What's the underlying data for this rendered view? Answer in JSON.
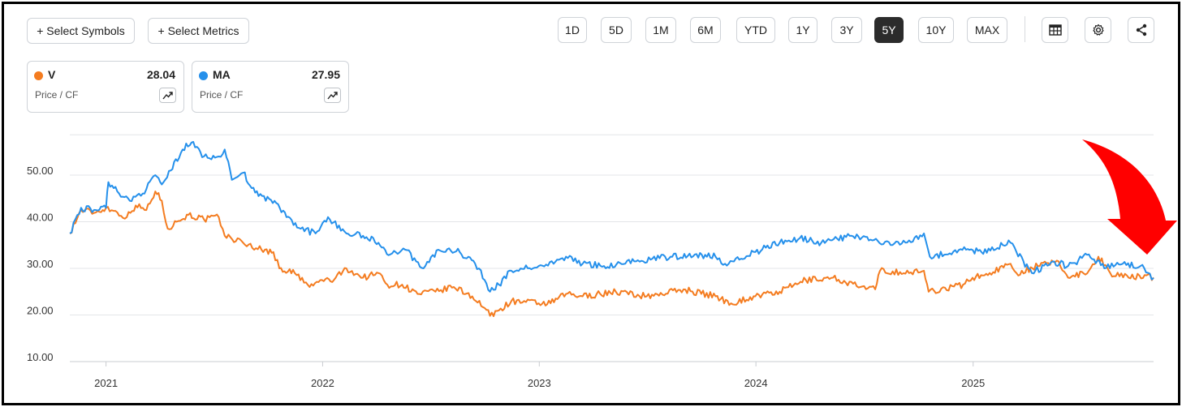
{
  "toolbar": {
    "select_symbols": "+ Select Symbols",
    "select_metrics": "+ Select Metrics",
    "ranges": [
      "1D",
      "5D",
      "1M",
      "6M",
      "YTD",
      "1Y",
      "3Y",
      "5Y",
      "10Y",
      "MAX"
    ],
    "active_range": "5Y",
    "icons": [
      "table-icon",
      "gear-icon",
      "share-icon"
    ]
  },
  "legend_cards": [
    {
      "symbol": "V",
      "value": "28.04",
      "metric": "Price / CF",
      "color": "#f47c20"
    },
    {
      "symbol": "MA",
      "value": "27.95",
      "metric": "Price / CF",
      "color": "#2590eb"
    }
  ],
  "annotation": {
    "type": "red-arrow-pointing-down",
    "color": "#ff0000"
  },
  "chart_data": {
    "type": "line",
    "title": "",
    "xlabel": "",
    "ylabel": "",
    "x_ticks": [
      "2021",
      "2022",
      "2023",
      "2024",
      "2025"
    ],
    "y_ticks": [
      "10.00",
      "20.00",
      "30.00",
      "40.00",
      "50.00"
    ],
    "ylim": [
      9,
      59
    ],
    "xlim": [
      "2020-11-01",
      "2025-11-01"
    ],
    "grid": "horizontal",
    "series": [
      {
        "name": "V",
        "color": "#f47c20",
        "points": [
          [
            "2020-11-01",
            37.5
          ],
          [
            "2020-11-20",
            42.5
          ],
          [
            "2020-12-15",
            42.0
          ],
          [
            "2021-01-01",
            43.0
          ],
          [
            "2021-01-20",
            42.0
          ],
          [
            "2021-02-05",
            41.0
          ],
          [
            "2021-02-20",
            43.5
          ],
          [
            "2021-03-10",
            42.5
          ],
          [
            "2021-03-25",
            46.5
          ],
          [
            "2021-04-05",
            44.5
          ],
          [
            "2021-04-15",
            38.5
          ],
          [
            "2021-04-30",
            40.0
          ],
          [
            "2021-05-20",
            41.5
          ],
          [
            "2021-06-15",
            40.5
          ],
          [
            "2021-07-10",
            41.0
          ],
          [
            "2021-07-20",
            37.0
          ],
          [
            "2021-08-20",
            35.5
          ],
          [
            "2021-09-20",
            34.0
          ],
          [
            "2021-10-10",
            33.5
          ],
          [
            "2021-10-20",
            30.0
          ],
          [
            "2021-11-15",
            29.0
          ],
          [
            "2021-12-10",
            26.0
          ],
          [
            "2021-12-31",
            27.5
          ],
          [
            "2022-01-20",
            27.5
          ],
          [
            "2022-02-10",
            30.0
          ],
          [
            "2022-03-10",
            28.0
          ],
          [
            "2022-04-05",
            29.0
          ],
          [
            "2022-04-20",
            26.5
          ],
          [
            "2022-05-15",
            26.5
          ],
          [
            "2022-06-10",
            24.5
          ],
          [
            "2022-07-10",
            25.0
          ],
          [
            "2022-08-10",
            26.0
          ],
          [
            "2022-09-10",
            24.0
          ],
          [
            "2022-10-01",
            21.5
          ],
          [
            "2022-10-10",
            19.8
          ],
          [
            "2022-10-25",
            21.0
          ],
          [
            "2022-11-15",
            23.0
          ],
          [
            "2022-12-31",
            22.5
          ],
          [
            "2023-01-20",
            22.5
          ],
          [
            "2023-02-15",
            24.5
          ],
          [
            "2023-03-15",
            24.0
          ],
          [
            "2023-05-10",
            25.0
          ],
          [
            "2023-07-01",
            24.0
          ],
          [
            "2023-09-01",
            25.5
          ],
          [
            "2023-10-25",
            24.0
          ],
          [
            "2023-11-20",
            22.5
          ],
          [
            "2023-12-31",
            24.0
          ],
          [
            "2024-02-10",
            25.0
          ],
          [
            "2024-03-25",
            27.5
          ],
          [
            "2024-05-10",
            28.0
          ],
          [
            "2024-06-25",
            26.0
          ],
          [
            "2024-07-20",
            25.5
          ],
          [
            "2024-07-28",
            29.5
          ],
          [
            "2024-09-15",
            29.0
          ],
          [
            "2024-10-10",
            29.5
          ],
          [
            "2024-10-18",
            25.0
          ],
          [
            "2024-12-15",
            26.5
          ],
          [
            "2024-12-31",
            28.0
          ],
          [
            "2025-01-20",
            28.5
          ],
          [
            "2025-03-05",
            31.0
          ],
          [
            "2025-03-15",
            29.0
          ],
          [
            "2025-04-20",
            30.5
          ],
          [
            "2025-05-25",
            31.5
          ],
          [
            "2025-06-10",
            28.0
          ],
          [
            "2025-07-15",
            29.5
          ],
          [
            "2025-07-31",
            32.5
          ],
          [
            "2025-08-20",
            29.0
          ],
          [
            "2025-09-20",
            28.0
          ],
          [
            "2025-10-20",
            28.5
          ],
          [
            "2025-11-01",
            28.04
          ]
        ]
      },
      {
        "name": "MA",
        "color": "#2590eb",
        "points": [
          [
            "2020-11-01",
            37.5
          ],
          [
            "2020-11-20",
            43.0
          ],
          [
            "2020-12-15",
            42.5
          ],
          [
            "2021-01-01",
            43.0
          ],
          [
            "2021-01-05",
            48.5
          ],
          [
            "2021-01-20",
            46.5
          ],
          [
            "2021-02-10",
            44.5
          ],
          [
            "2021-03-10",
            47.0
          ],
          [
            "2021-03-25",
            50.0
          ],
          [
            "2021-04-05",
            48.0
          ],
          [
            "2021-04-20",
            51.0
          ],
          [
            "2021-05-10",
            55.5
          ],
          [
            "2021-05-25",
            57.0
          ],
          [
            "2021-06-15",
            54.0
          ],
          [
            "2021-07-10",
            54.0
          ],
          [
            "2021-07-20",
            55.5
          ],
          [
            "2021-08-01",
            49.0
          ],
          [
            "2021-08-20",
            50.5
          ],
          [
            "2021-09-15",
            45.5
          ],
          [
            "2021-10-15",
            44.0
          ],
          [
            "2021-11-01",
            41.0
          ],
          [
            "2021-11-25",
            38.5
          ],
          [
            "2021-12-20",
            37.5
          ],
          [
            "2022-01-10",
            41.0
          ],
          [
            "2022-02-10",
            37.5
          ],
          [
            "2022-03-10",
            37.0
          ],
          [
            "2022-04-05",
            35.5
          ],
          [
            "2022-04-25",
            33.0
          ],
          [
            "2022-05-20",
            34.0
          ],
          [
            "2022-06-20",
            30.0
          ],
          [
            "2022-07-15",
            34.0
          ],
          [
            "2022-08-20",
            33.5
          ],
          [
            "2022-09-15",
            31.0
          ],
          [
            "2022-10-01",
            27.5
          ],
          [
            "2022-10-10",
            25.0
          ],
          [
            "2022-10-25",
            26.5
          ],
          [
            "2022-11-15",
            29.5
          ],
          [
            "2022-12-31",
            30.5
          ],
          [
            "2023-01-25",
            31.0
          ],
          [
            "2023-02-15",
            32.5
          ],
          [
            "2023-03-15",
            31.0
          ],
          [
            "2023-04-20",
            30.5
          ],
          [
            "2023-06-10",
            31.5
          ],
          [
            "2023-08-10",
            32.5
          ],
          [
            "2023-09-20",
            33.0
          ],
          [
            "2023-10-25",
            32.5
          ],
          [
            "2023-11-10",
            31.0
          ],
          [
            "2023-12-31",
            33.5
          ],
          [
            "2024-02-10",
            35.5
          ],
          [
            "2024-03-15",
            36.5
          ],
          [
            "2024-04-20",
            35.5
          ],
          [
            "2024-06-10",
            37.0
          ],
          [
            "2024-07-15",
            36.0
          ],
          [
            "2024-08-15",
            35.0
          ],
          [
            "2024-09-15",
            36.0
          ],
          [
            "2024-10-10",
            37.5
          ],
          [
            "2024-10-20",
            32.5
          ],
          [
            "2024-12-20",
            34.0
          ],
          [
            "2025-01-15",
            33.5
          ],
          [
            "2025-02-20",
            35.0
          ],
          [
            "2025-03-05",
            35.5
          ],
          [
            "2025-03-15",
            33.5
          ],
          [
            "2025-04-10",
            29.0
          ],
          [
            "2025-05-15",
            31.5
          ],
          [
            "2025-06-10",
            30.5
          ],
          [
            "2025-07-15",
            33.0
          ],
          [
            "2025-08-10",
            30.0
          ],
          [
            "2025-09-10",
            31.0
          ],
          [
            "2025-10-10",
            30.5
          ],
          [
            "2025-11-01",
            27.95
          ]
        ]
      }
    ]
  }
}
